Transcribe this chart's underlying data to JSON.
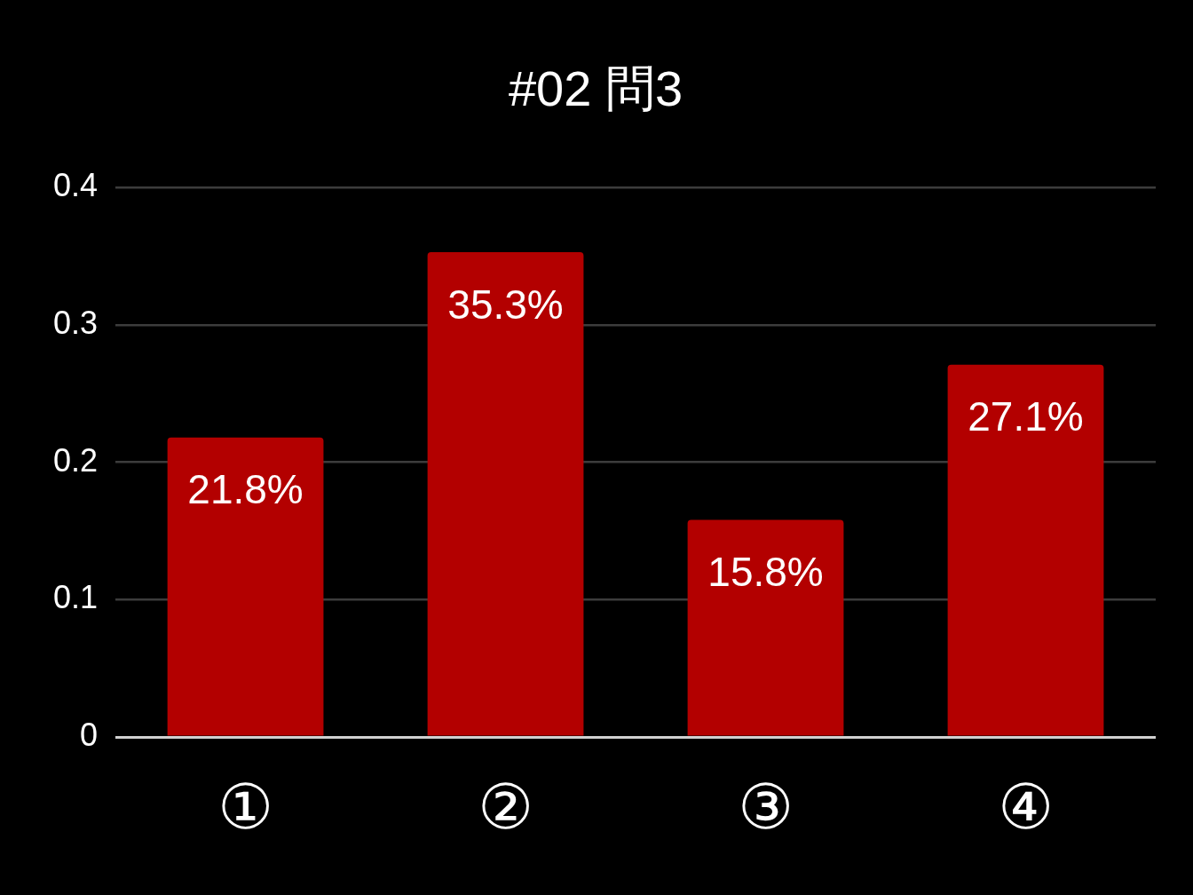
{
  "chart_data": {
    "type": "bar",
    "title": "#02 問3",
    "categories": [
      "①",
      "②",
      "③",
      "④"
    ],
    "values": [
      0.218,
      0.353,
      0.158,
      0.271
    ],
    "value_labels": [
      "21.8%",
      "35.3%",
      "15.8%",
      "27.1%"
    ],
    "color": "#b30000",
    "ylim": [
      0,
      0.4
    ],
    "yticks": [
      0,
      0.1,
      0.2,
      0.3,
      0.4
    ],
    "grid": "y"
  }
}
